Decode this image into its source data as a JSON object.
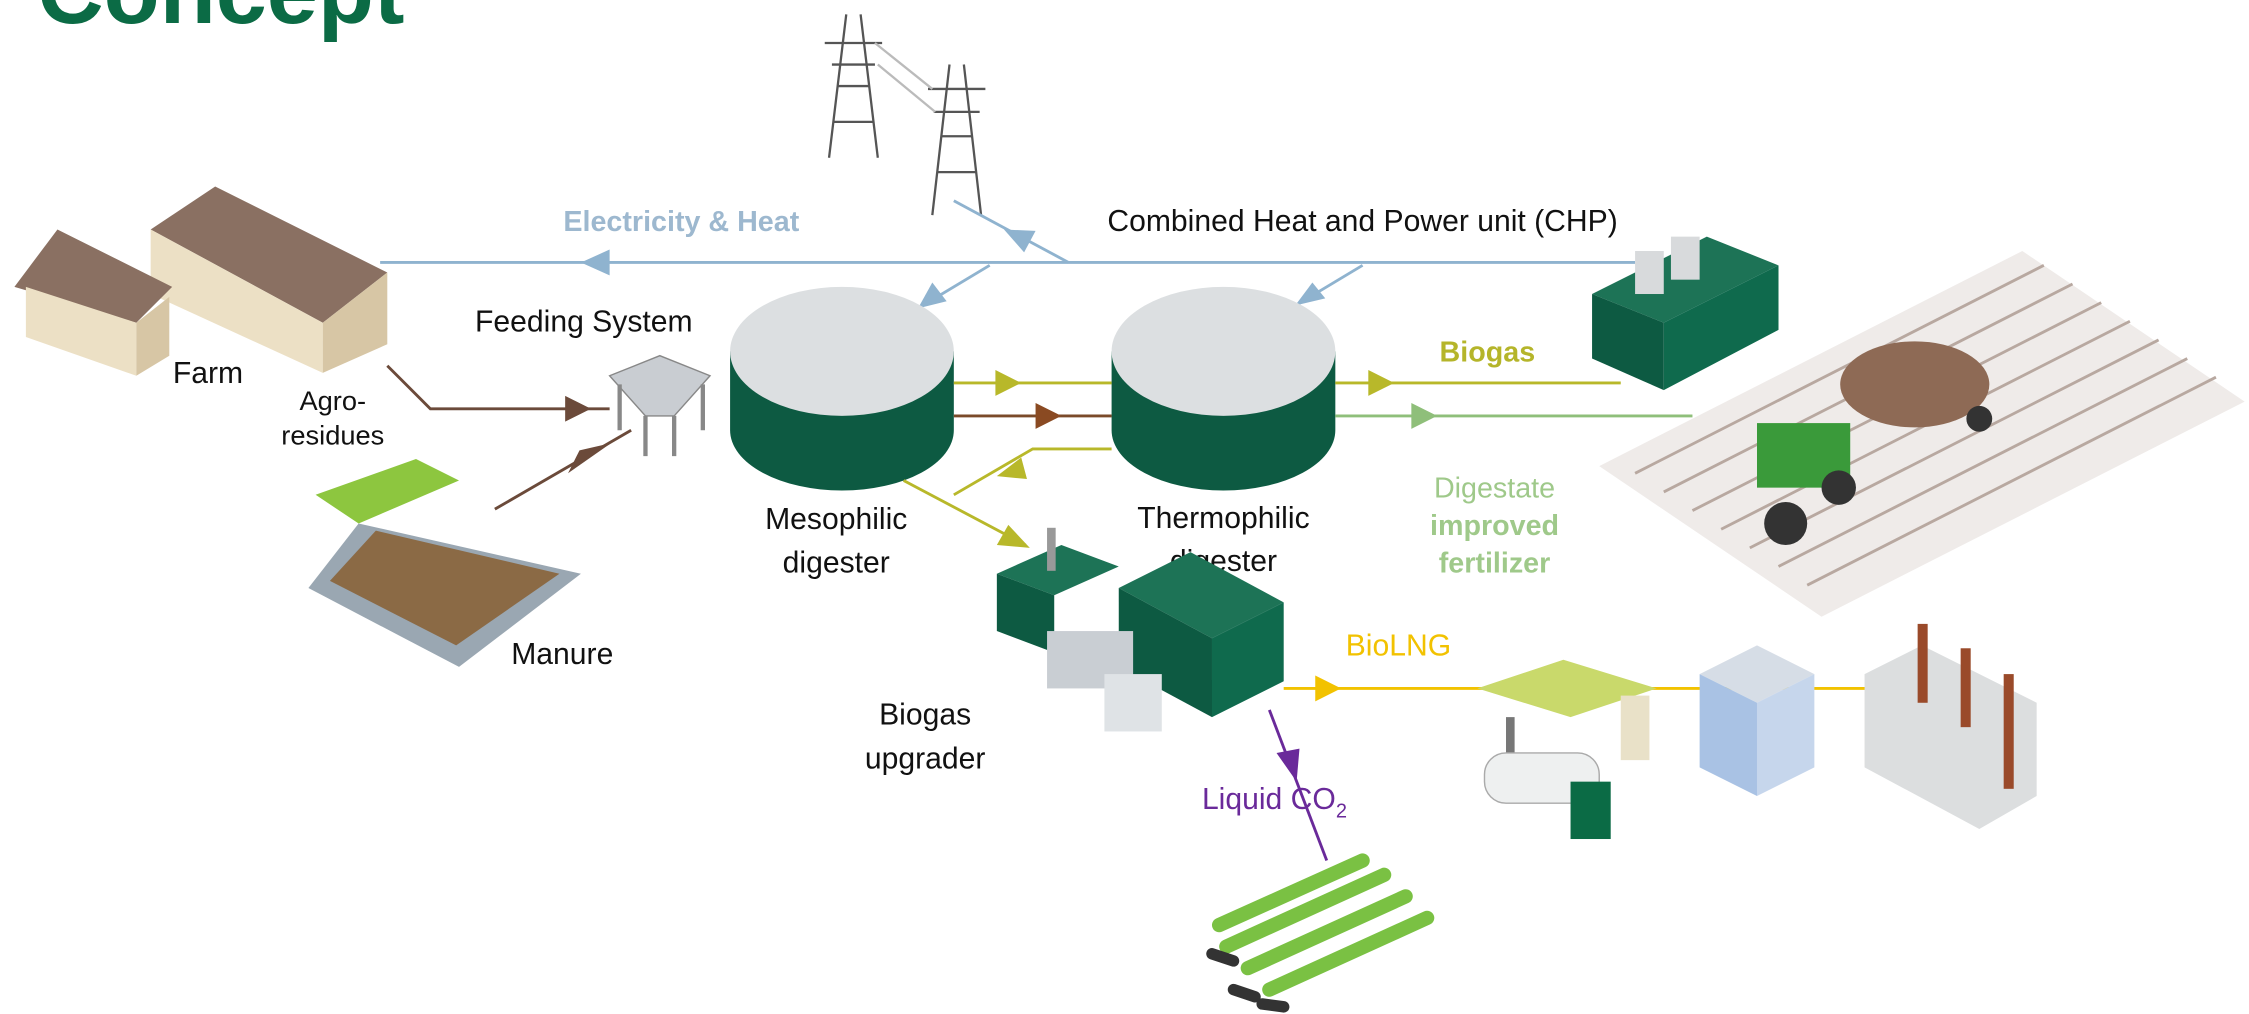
{
  "title": "Concept",
  "flows": {
    "electricity_heat": "Electricity & Heat",
    "biogas": "Biogas",
    "digestate": {
      "lines": [
        "Digestate",
        "improved",
        "fertilizer"
      ]
    },
    "biolng": "BioLNG",
    "liquid_co2": {
      "text": "Liquid CO",
      "subscript": "2"
    }
  },
  "nodes": {
    "chp": "Combined Heat and Power unit (CHP)",
    "feeding_system": "Feeding System",
    "farm": "Farm",
    "agro_residues": {
      "lines": [
        "Agro-",
        "residues"
      ]
    },
    "manure": "Manure",
    "mesophilic_digester": {
      "lines": [
        "Mesophilic",
        "digester"
      ]
    },
    "thermophilic_digester": {
      "lines": [
        "Thermophilic",
        "digester"
      ]
    },
    "biogas_upgrader": {
      "lines": [
        "Biogas",
        "upgrader"
      ]
    }
  }
}
